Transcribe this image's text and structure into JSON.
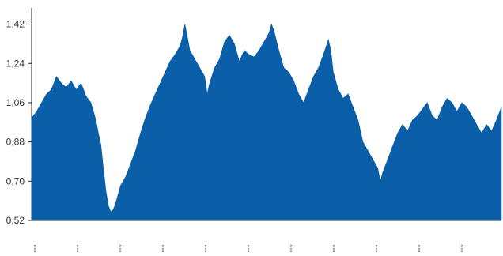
{
  "chart_data": {
    "type": "area",
    "title": "",
    "xlabel": "",
    "ylabel": "",
    "ylim": [
      0.52,
      1.48
    ],
    "yticks": [
      0.52,
      0.7,
      0.88,
      1.06,
      1.24,
      1.42
    ],
    "ytick_labels": [
      "0,52",
      "0,70",
      "0,88",
      "1,06",
      "1,24",
      "1,42"
    ],
    "xtick_labels": [
      "⋮",
      "⋮",
      "⋮",
      "⋮",
      "⋮",
      "⋮",
      "⋮",
      "⋮",
      "⋮",
      "⋮",
      "⋮"
    ],
    "grid": false,
    "legend": "none",
    "series": [
      {
        "color": "#0a5fa8",
        "points": [
          [
            0,
            0.99
          ],
          [
            2,
            1.02
          ],
          [
            4,
            1.06
          ],
          [
            6,
            1.1
          ],
          [
            8,
            1.12
          ],
          [
            10,
            1.18
          ],
          [
            12,
            1.15
          ],
          [
            14,
            1.13
          ],
          [
            16,
            1.16
          ],
          [
            18,
            1.12
          ],
          [
            20,
            1.15
          ],
          [
            22,
            1.09
          ],
          [
            24,
            1.06
          ],
          [
            26,
            0.98
          ],
          [
            27,
            0.92
          ],
          [
            28,
            0.87
          ],
          [
            29,
            0.76
          ],
          [
            30,
            0.66
          ],
          [
            31,
            0.59
          ],
          [
            32,
            0.56
          ],
          [
            33,
            0.57
          ],
          [
            34,
            0.6
          ],
          [
            35,
            0.64
          ],
          [
            36,
            0.68
          ],
          [
            38,
            0.72
          ],
          [
            40,
            0.78
          ],
          [
            42,
            0.84
          ],
          [
            44,
            0.92
          ],
          [
            46,
            0.99
          ],
          [
            48,
            1.05
          ],
          [
            50,
            1.1
          ],
          [
            52,
            1.15
          ],
          [
            54,
            1.2
          ],
          [
            56,
            1.25
          ],
          [
            58,
            1.28
          ],
          [
            60,
            1.32
          ],
          [
            61,
            1.36
          ],
          [
            62,
            1.42
          ],
          [
            63,
            1.36
          ],
          [
            64,
            1.3
          ],
          [
            66,
            1.26
          ],
          [
            68,
            1.22
          ],
          [
            70,
            1.18
          ],
          [
            71,
            1.1
          ],
          [
            72,
            1.15
          ],
          [
            74,
            1.22
          ],
          [
            76,
            1.26
          ],
          [
            78,
            1.34
          ],
          [
            80,
            1.37
          ],
          [
            82,
            1.33
          ],
          [
            84,
            1.25
          ],
          [
            86,
            1.3
          ],
          [
            88,
            1.28
          ],
          [
            90,
            1.27
          ],
          [
            92,
            1.3
          ],
          [
            94,
            1.34
          ],
          [
            96,
            1.38
          ],
          [
            97,
            1.42
          ],
          [
            98,
            1.39
          ],
          [
            100,
            1.3
          ],
          [
            102,
            1.22
          ],
          [
            104,
            1.2
          ],
          [
            106,
            1.16
          ],
          [
            108,
            1.1
          ],
          [
            110,
            1.06
          ],
          [
            112,
            1.12
          ],
          [
            114,
            1.18
          ],
          [
            116,
            1.22
          ],
          [
            118,
            1.28
          ],
          [
            120,
            1.35
          ],
          [
            121,
            1.3
          ],
          [
            122,
            1.2
          ],
          [
            124,
            1.12
          ],
          [
            126,
            1.08
          ],
          [
            128,
            1.1
          ],
          [
            130,
            1.04
          ],
          [
            132,
            0.98
          ],
          [
            134,
            0.88
          ],
          [
            136,
            0.84
          ],
          [
            138,
            0.8
          ],
          [
            140,
            0.76
          ],
          [
            141,
            0.7
          ],
          [
            142,
            0.74
          ],
          [
            144,
            0.8
          ],
          [
            146,
            0.86
          ],
          [
            148,
            0.92
          ],
          [
            150,
            0.96
          ],
          [
            152,
            0.93
          ],
          [
            154,
            0.98
          ],
          [
            156,
            1.0
          ],
          [
            158,
            1.03
          ],
          [
            160,
            1.06
          ],
          [
            162,
            1.0
          ],
          [
            164,
            0.98
          ],
          [
            166,
            1.04
          ],
          [
            168,
            1.08
          ],
          [
            170,
            1.06
          ],
          [
            172,
            1.02
          ],
          [
            174,
            1.06
          ],
          [
            176,
            1.04
          ],
          [
            178,
            1.0
          ],
          [
            180,
            0.96
          ],
          [
            182,
            0.92
          ],
          [
            184,
            0.96
          ],
          [
            186,
            0.93
          ],
          [
            188,
            0.98
          ],
          [
            190,
            1.04
          ]
        ]
      }
    ]
  }
}
